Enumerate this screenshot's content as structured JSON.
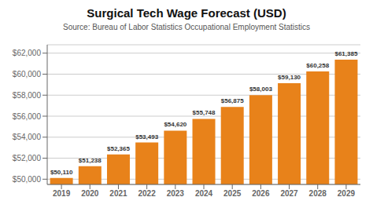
{
  "chart_data": {
    "type": "bar",
    "title": "Surgical Tech Wage Forecast (USD)",
    "subtitle": "Source: Bureau of Labor Statistics Occupational Employment Statistics",
    "categories": [
      "2019",
      "2020",
      "2021",
      "2022",
      "2023",
      "2024",
      "2025",
      "2026",
      "2027",
      "2028",
      "2029"
    ],
    "values": [
      50110,
      51238,
      52365,
      53493,
      54620,
      55748,
      56875,
      58003,
      59130,
      60258,
      61385
    ],
    "value_labels": [
      "$50,110",
      "$51,238",
      "$52,365",
      "$53,493",
      "$54,620",
      "$55,748",
      "$56,875",
      "$58,003",
      "$59,130",
      "$60,258",
      "$61,385"
    ],
    "data_labels": true,
    "color": "#E8821A",
    "ylim": [
      49500,
      62800
    ],
    "yticks": [
      {
        "value": 50000,
        "label": "$50,000"
      },
      {
        "value": 52000,
        "label": "$52,000"
      },
      {
        "value": 54000,
        "label": "$54,000"
      },
      {
        "value": 56000,
        "label": "$56,000"
      },
      {
        "value": 58000,
        "label": "$58,000"
      },
      {
        "value": 60000,
        "label": "$60,000"
      },
      {
        "value": 62000,
        "label": "$62,000"
      }
    ],
    "grid": true
  }
}
